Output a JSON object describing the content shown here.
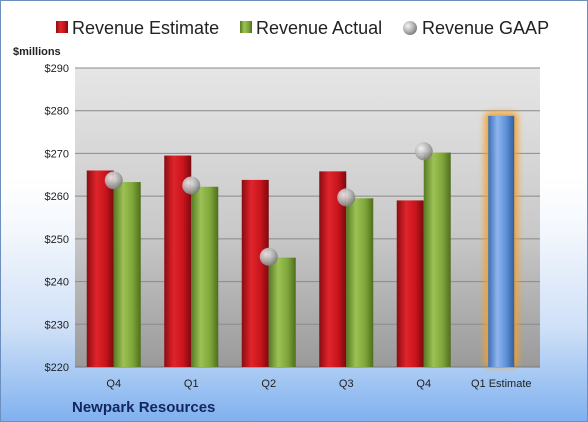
{
  "chart_data": {
    "type": "bar",
    "ylabel": "$millions",
    "ylim": [
      220,
      290
    ],
    "yticks": [
      220,
      230,
      240,
      250,
      260,
      270,
      280,
      290
    ],
    "yticks_label": [
      "$220",
      "$230",
      "$240",
      "$250",
      "$260",
      "$270",
      "$280",
      "$290"
    ],
    "categories": [
      "Q4",
      "Q1",
      "Q2",
      "Q3",
      "Q4",
      "Q1 Estimate"
    ],
    "series": [
      {
        "name": "Revenue Estimate",
        "kind": "bar",
        "color": "#c8141c",
        "values": [
          266,
          269.5,
          263.8,
          265.8,
          259,
          null
        ]
      },
      {
        "name": "Revenue Actual",
        "kind": "bar",
        "color": "#7fa63a",
        "values": [
          263.3,
          262.2,
          245.6,
          259.5,
          270.2,
          null
        ]
      },
      {
        "name": "Revenue GAAP",
        "kind": "marker",
        "color": "#a8a8a8",
        "values": [
          263.7,
          262.5,
          245.8,
          259.7,
          270.5,
          null
        ]
      },
      {
        "name": "",
        "kind": "bar",
        "color": "#5b8fd6",
        "values": [
          null,
          null,
          null,
          null,
          null,
          278.8
        ]
      }
    ],
    "legend_position": "top",
    "grid": true,
    "caption": "Newpark Resources"
  }
}
